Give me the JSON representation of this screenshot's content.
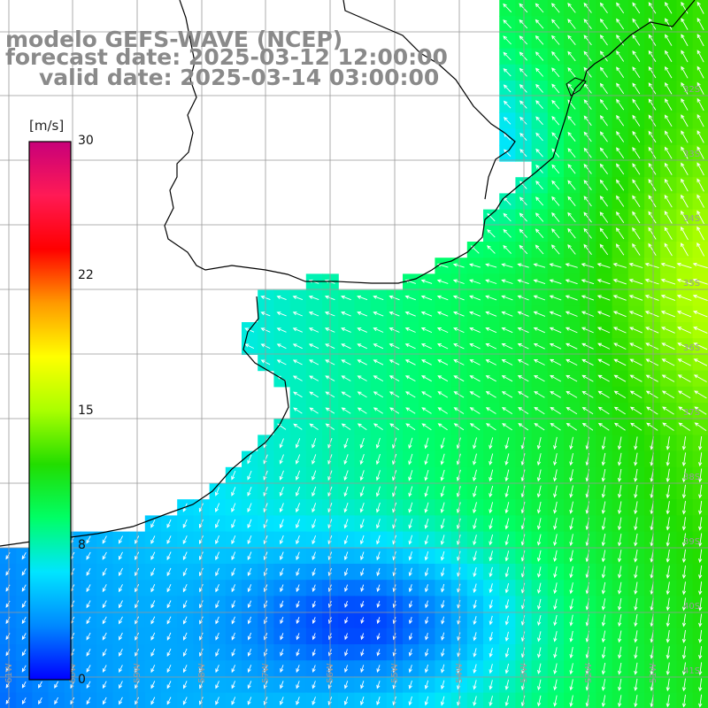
{
  "title": {
    "line1": "modelo GEFS-WAVE (NCEP)",
    "line2": "forecast date: 2025-03-12 12:00:00",
    "line3": "valid date: 2025-03-14 03:00:00"
  },
  "colorbar": {
    "unit": "[m/s]",
    "ticks": [
      "30",
      "22",
      "15",
      "8",
      "0"
    ],
    "tick_values": [
      30,
      22,
      15,
      8,
      0
    ],
    "min": 0,
    "max": 30,
    "colors": [
      "#0000ff",
      "#0088ff",
      "#00e5ff",
      "#00ff66",
      "#22dd00",
      "#aaff00",
      "#ffff00",
      "#ff9900",
      "#ff0000",
      "#ff1a55",
      "#c8007a"
    ]
  },
  "map": {
    "variable": "wind speed and direction",
    "latitude_labels": [
      "32S",
      "33S",
      "34S",
      "35S",
      "36S",
      "37S",
      "38S",
      "39S",
      "40S",
      "41S"
    ],
    "longitude_labels": [
      "61W",
      "60W",
      "59W",
      "58W",
      "57W",
      "56W",
      "55W",
      "54W",
      "53W",
      "52W",
      "51W"
    ],
    "land_color": "#ffffff",
    "grid_color": "#999999",
    "coast_color": "#000000",
    "arrow_color": "#ffffff"
  }
}
